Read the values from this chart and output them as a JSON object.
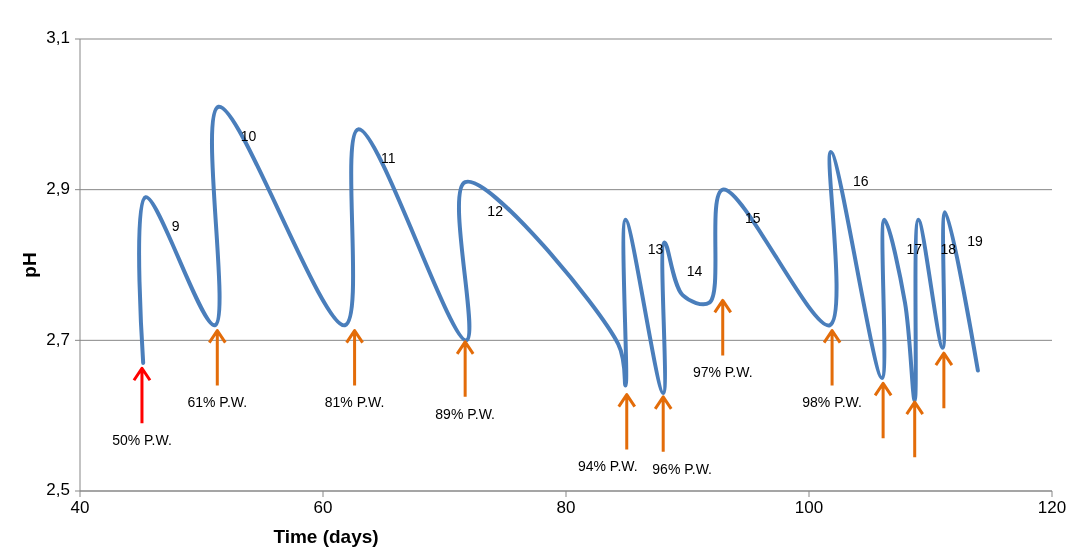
{
  "chart_data": {
    "type": "line",
    "xlabel": "Time (days)",
    "ylabel": "pH",
    "xlim": [
      40,
      120
    ],
    "xticks": [
      40,
      60,
      80,
      100,
      120
    ],
    "ylim": [
      2.5,
      3.1
    ],
    "yticks": [
      {
        "value": 2.5,
        "label": "2,5"
      },
      {
        "value": 2.7,
        "label": "2,7"
      },
      {
        "value": 2.9,
        "label": "2,9"
      },
      {
        "value": 3.1,
        "label": "3,1"
      }
    ],
    "grid": "y",
    "line_style": "solid",
    "series": [
      {
        "color": "#4a7ebb",
        "x": [
          45.2,
          45.4,
          51.1,
          51.4,
          61.8,
          62.9,
          71.8,
          71.7,
          84.3,
          84.9,
          84.9,
          88.0,
          88.1,
          89.6,
          91.8,
          92.9,
          101.7,
          101.8,
          106.0,
          106.2,
          107.9,
          108.7,
          109.0,
          111.0,
          111.2,
          113.9
        ],
        "values": [
          2.67,
          2.89,
          2.72,
          3.01,
          2.72,
          2.98,
          2.7,
          2.91,
          2.695,
          2.64,
          2.86,
          2.63,
          2.83,
          2.76,
          2.75,
          2.9,
          2.72,
          2.95,
          2.65,
          2.86,
          2.75,
          2.62,
          2.86,
          2.69,
          2.87,
          2.66
        ]
      },
      {
        "type": "scatter",
        "x": [
          45.1,
          51.3,
          62.6,
          71.7,
          85.0,
          88.0,
          92.9,
          101.9,
          106.1,
          108.7,
          111.1
        ],
        "values": [
          2.655,
          2.705,
          2.705,
          2.69,
          2.62,
          2.617,
          2.745,
          2.705,
          2.635,
          2.61,
          2.675
        ],
        "colors": [
          "#ff0000",
          "#e36c09",
          "#e36c09",
          "#e36c09",
          "#e36c09",
          "#e36c09",
          "#e36c09",
          "#e36c09",
          "#e36c09",
          "#e36c09",
          "#e36c09"
        ]
      }
    ],
    "annotations": [
      {
        "text": "9",
        "x": 45.4,
        "y": 2.89
      },
      {
        "text": "10",
        "x": 51.4,
        "y": 3.01
      },
      {
        "text": "11",
        "x": 62.9,
        "y": 2.98
      },
      {
        "text": "12",
        "x": 71.7,
        "y": 2.91
      },
      {
        "text": "13",
        "x": 84.9,
        "y": 2.86
      },
      {
        "text": "14",
        "x": 88.1,
        "y": 2.83
      },
      {
        "text": "15",
        "x": 92.9,
        "y": 2.9
      },
      {
        "text": "16",
        "x": 101.8,
        "y": 2.95
      },
      {
        "text": "17",
        "x": 106.2,
        "y": 2.86
      },
      {
        "text": "18",
        "x": 109.0,
        "y": 2.86
      },
      {
        "text": "19",
        "x": 111.2,
        "y": 2.87
      },
      {
        "text": "50% P.W.",
        "x": 45.1,
        "y": 2.655
      },
      {
        "text": "61% P.W.",
        "x": 51.3,
        "y": 2.705
      },
      {
        "text": "81% P.W.",
        "x": 62.6,
        "y": 2.705
      },
      {
        "text": "89% P.W.",
        "x": 71.7,
        "y": 2.69
      },
      {
        "text": "94% P.W.",
        "x": 85.0,
        "y": 2.62
      },
      {
        "text": "96% P.W.",
        "x": 88.0,
        "y": 2.617
      },
      {
        "text": "97% P.W.",
        "x": 92.9,
        "y": 2.745
      },
      {
        "text": "98% P.W.",
        "x": 101.9,
        "y": 2.705
      }
    ]
  }
}
